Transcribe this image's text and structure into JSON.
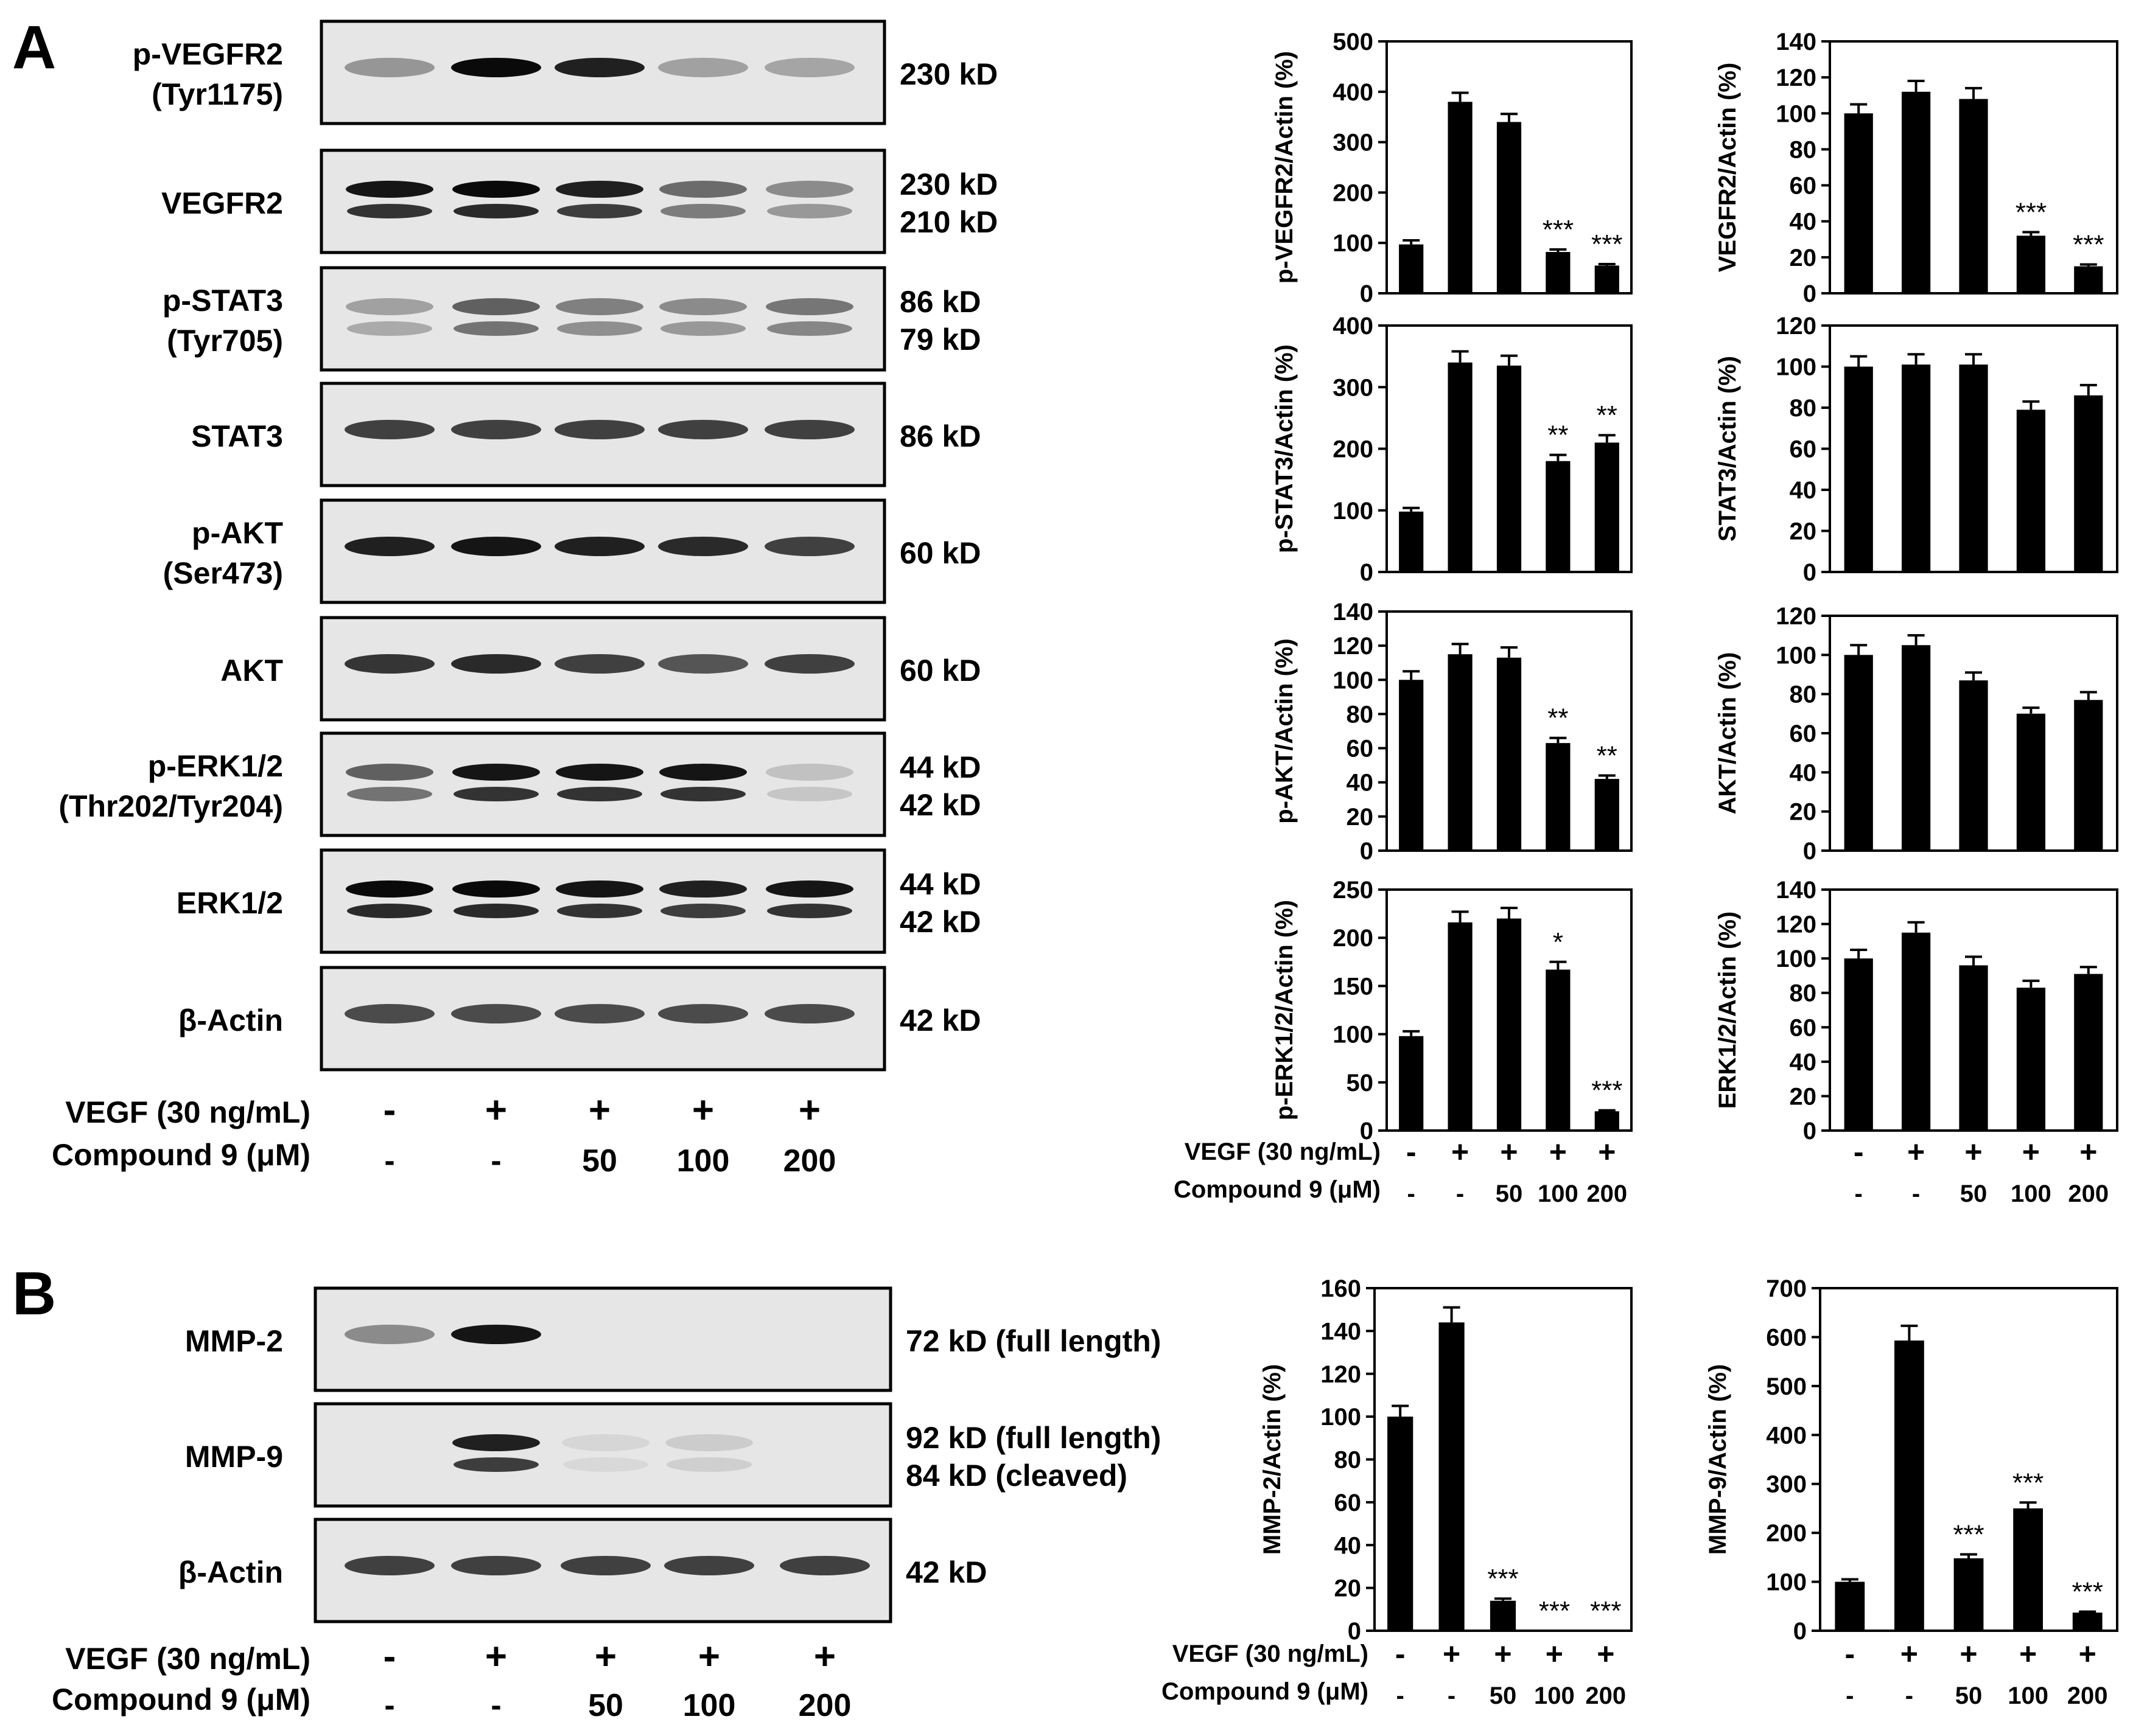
{
  "panels": {
    "a": "A",
    "b": "B"
  },
  "treatments": {
    "vegf_label": "VEGF (30 ng/mL)",
    "compound_label": "Compound 9 (μM)",
    "vegf": [
      "-",
      "+",
      "+",
      "+",
      "+"
    ],
    "compound": [
      "-",
      "-",
      "50",
      "100",
      "200"
    ]
  },
  "western_blots_a": [
    {
      "label": [
        "p-VEGFR2",
        "(Tyr1175)"
      ],
      "bands": [
        "230 kD"
      ],
      "intensity": [
        0.35,
        1.0,
        0.9,
        0.3,
        0.28
      ]
    },
    {
      "label": [
        "VEGFR2"
      ],
      "bands": [
        "230 kD",
        "210 kD"
      ],
      "intensity": [
        0.95,
        1.0,
        0.9,
        0.55,
        0.4
      ]
    },
    {
      "label": [
        "p-STAT3",
        "(Tyr705)"
      ],
      "bands": [
        "86 kD",
        "79 kD"
      ],
      "intensity": [
        0.3,
        0.6,
        0.45,
        0.4,
        0.5
      ]
    },
    {
      "label": [
        "STAT3"
      ],
      "bands": [
        "86 kD"
      ],
      "intensity": [
        0.75,
        0.75,
        0.75,
        0.75,
        0.75
      ]
    },
    {
      "label": [
        "p-AKT",
        "(Ser473)"
      ],
      "bands": [
        "60 kD"
      ],
      "intensity": [
        0.9,
        0.95,
        0.9,
        0.85,
        0.75
      ]
    },
    {
      "label": [
        "AKT"
      ],
      "bands": [
        "60 kD"
      ],
      "intensity": [
        0.8,
        0.85,
        0.75,
        0.65,
        0.75
      ]
    },
    {
      "label": [
        "p-ERK1/2",
        "(Thr202/Tyr204)"
      ],
      "bands": [
        "44 kD",
        "42 kD"
      ],
      "intensity": [
        0.6,
        0.95,
        0.95,
        0.95,
        0.15
      ]
    },
    {
      "label": [
        "ERK1/2"
      ],
      "bands": [
        "44 kD",
        "42 kD"
      ],
      "intensity": [
        1.0,
        1.0,
        0.95,
        0.9,
        0.95
      ]
    },
    {
      "label": [
        "β-Actin"
      ],
      "bands": [
        "42 kD"
      ],
      "intensity": [
        0.7,
        0.7,
        0.7,
        0.7,
        0.7
      ]
    }
  ],
  "western_blots_b": [
    {
      "label": [
        "MMP-2"
      ],
      "bands": [
        "72 kD (full length)"
      ],
      "intensity": [
        0.4,
        0.95,
        0.0,
        0.0,
        0.0
      ]
    },
    {
      "label": [
        "MMP-9"
      ],
      "bands": [
        "92 kD (full length)",
        "84 kD (cleaved)"
      ],
      "intensity": [
        0.0,
        0.9,
        0.05,
        0.1,
        0.0
      ]
    },
    {
      "label": [
        "β-Actin"
      ],
      "bands": [
        "42 kD"
      ],
      "intensity": [
        0.75,
        0.75,
        0.75,
        0.75,
        0.75
      ]
    }
  ],
  "chart_data": [
    {
      "type": "bar",
      "ylabel": "p-VEGFR2/Actin (%)",
      "ylim": [
        0,
        500
      ],
      "ticks": [
        0,
        100,
        200,
        300,
        400,
        500
      ],
      "values": [
        97,
        380,
        340,
        82,
        55
      ],
      "errors": [
        8,
        18,
        16,
        5,
        3
      ],
      "sig": [
        "",
        "",
        "",
        "***",
        "***"
      ]
    },
    {
      "type": "bar",
      "ylabel": "VEGFR2/Actin (%)",
      "ylim": [
        0,
        140
      ],
      "ticks": [
        0,
        20,
        40,
        60,
        80,
        100,
        120,
        140
      ],
      "values": [
        100,
        112,
        108,
        32,
        15
      ],
      "errors": [
        5,
        6,
        6,
        2,
        1
      ],
      "sig": [
        "",
        "",
        "",
        "***",
        "***"
      ]
    },
    {
      "type": "bar",
      "ylabel": "p-STAT3/Actin (%)",
      "ylim": [
        0,
        400
      ],
      "ticks": [
        0,
        100,
        200,
        300,
        400
      ],
      "values": [
        98,
        340,
        335,
        180,
        210
      ],
      "errors": [
        6,
        18,
        16,
        10,
        12
      ],
      "sig": [
        "",
        "",
        "",
        "**",
        "**"
      ]
    },
    {
      "type": "bar",
      "ylabel": "STAT3/Actin (%)",
      "ylim": [
        0,
        120
      ],
      "ticks": [
        0,
        20,
        40,
        60,
        80,
        100,
        120
      ],
      "values": [
        100,
        101,
        101,
        79,
        86
      ],
      "errors": [
        5,
        5,
        5,
        4,
        5
      ],
      "sig": [
        "",
        "",
        "",
        "",
        ""
      ]
    },
    {
      "type": "bar",
      "ylabel": "p-AKT/Actin (%)",
      "ylim": [
        0,
        140
      ],
      "ticks": [
        0,
        20,
        40,
        60,
        80,
        100,
        120,
        140
      ],
      "values": [
        100,
        115,
        113,
        63,
        42
      ],
      "errors": [
        5,
        6,
        6,
        3,
        2
      ],
      "sig": [
        "",
        "",
        "",
        "**",
        "**"
      ]
    },
    {
      "type": "bar",
      "ylabel": "AKT/Actin (%)",
      "ylim": [
        0,
        120
      ],
      "ticks": [
        0,
        20,
        40,
        60,
        80,
        100,
        120
      ],
      "values": [
        100,
        105,
        87,
        70,
        77
      ],
      "errors": [
        5,
        5,
        4,
        3,
        4
      ],
      "sig": [
        "",
        "",
        "",
        "",
        ""
      ]
    },
    {
      "type": "bar",
      "ylabel": "p-ERK1/2/Actin (%)",
      "ylim": [
        0,
        250
      ],
      "ticks": [
        0,
        50,
        100,
        150,
        200,
        250
      ],
      "values": [
        98,
        216,
        220,
        167,
        20
      ],
      "errors": [
        5,
        11,
        11,
        8,
        1
      ],
      "sig": [
        "",
        "",
        "",
        "*",
        "***"
      ]
    },
    {
      "type": "bar",
      "ylabel": "ERK1/2/Actin (%)",
      "ylim": [
        0,
        140
      ],
      "ticks": [
        0,
        20,
        40,
        60,
        80,
        100,
        120,
        140
      ],
      "values": [
        100,
        115,
        96,
        83,
        91
      ],
      "errors": [
        5,
        6,
        5,
        4,
        4
      ],
      "sig": [
        "",
        "",
        "",
        "",
        ""
      ]
    },
    {
      "type": "bar",
      "ylabel": "MMP-2/Actin (%)",
      "ylim": [
        0,
        160
      ],
      "ticks": [
        0,
        20,
        40,
        60,
        80,
        100,
        120,
        140,
        160
      ],
      "values": [
        100,
        144,
        14,
        0,
        0
      ],
      "errors": [
        5,
        7,
        1,
        0,
        0
      ],
      "sig": [
        "",
        "",
        "***",
        "***",
        "***"
      ]
    },
    {
      "type": "bar",
      "ylabel": "MMP-9/Actin (%)",
      "ylim": [
        0,
        700
      ],
      "ticks": [
        0,
        100,
        200,
        300,
        400,
        500,
        600,
        700
      ],
      "values": [
        100,
        593,
        148,
        250,
        37
      ],
      "errors": [
        5,
        30,
        8,
        12,
        2
      ],
      "sig": [
        "",
        "",
        "***",
        "***",
        "***"
      ]
    }
  ]
}
